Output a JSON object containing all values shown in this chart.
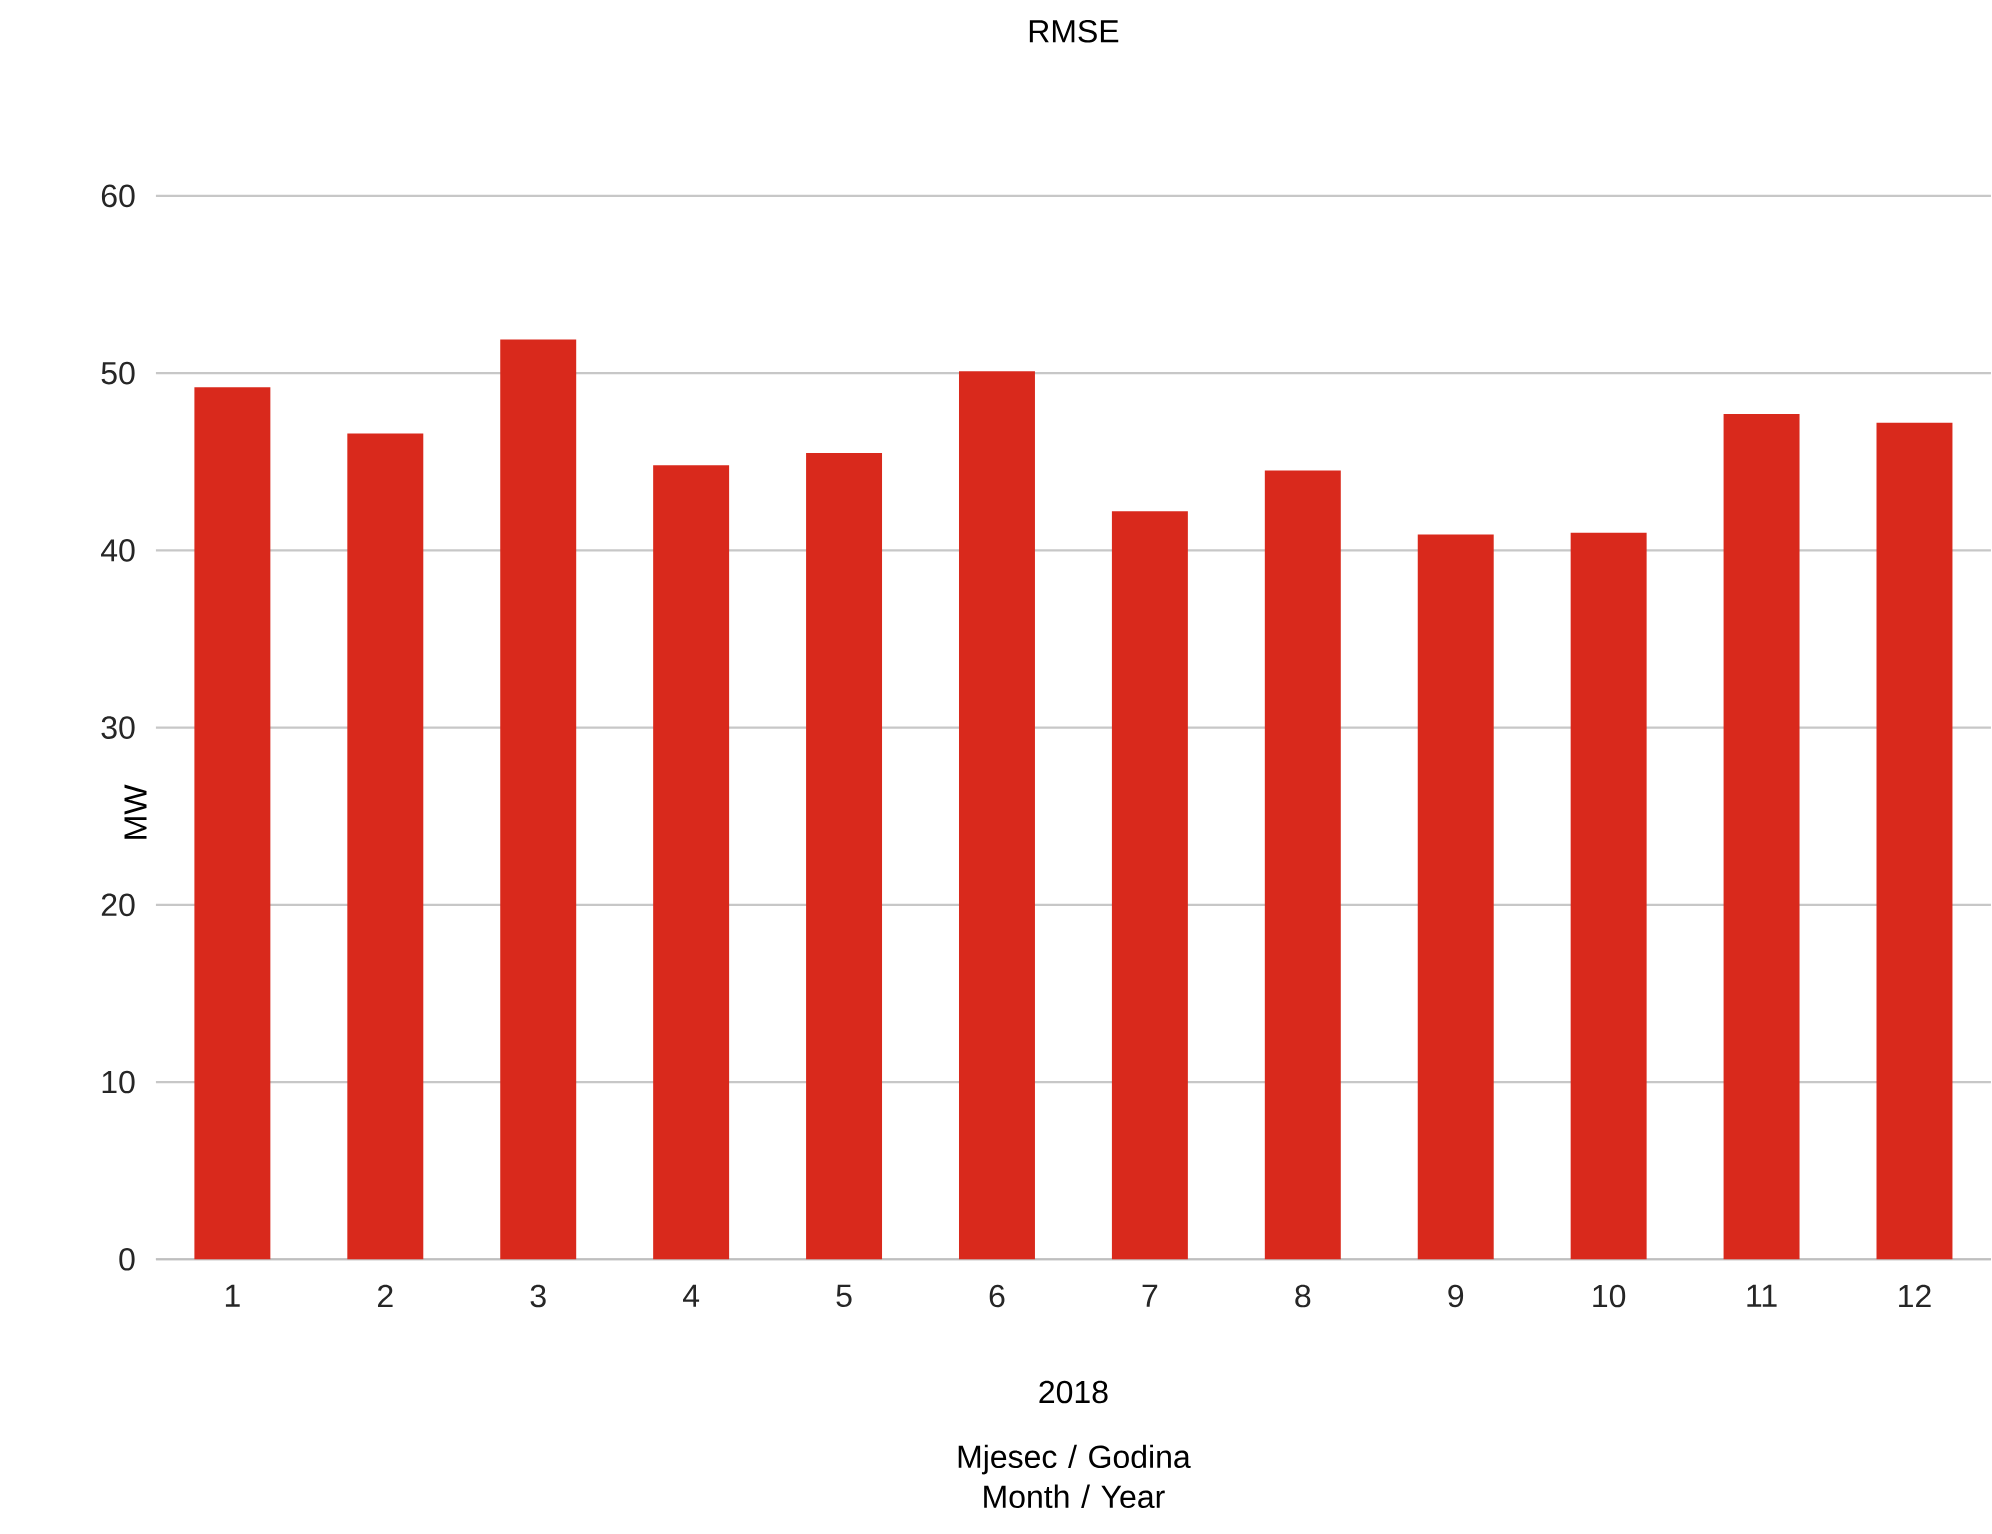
{
  "chart_data": {
    "type": "bar",
    "title": "RMSE",
    "ylabel": "MW",
    "xlabel": "Mjesec / Godina Month / Year",
    "categories": [
      "1",
      "2",
      "3",
      "4",
      "5",
      "6",
      "7",
      "8",
      "9",
      "10",
      "11",
      "12"
    ],
    "values": [
      49.2,
      46.6,
      51.9,
      44.8,
      45.5,
      50.1,
      42.2,
      44.5,
      40.9,
      41.0,
      47.7,
      47.2
    ],
    "color": "#d9291c",
    "ylim": [
      0,
      60
    ],
    "yticks": [
      0,
      10,
      20,
      30,
      40,
      50,
      60
    ],
    "grid": "y",
    "annotations": [
      "2018"
    ]
  }
}
